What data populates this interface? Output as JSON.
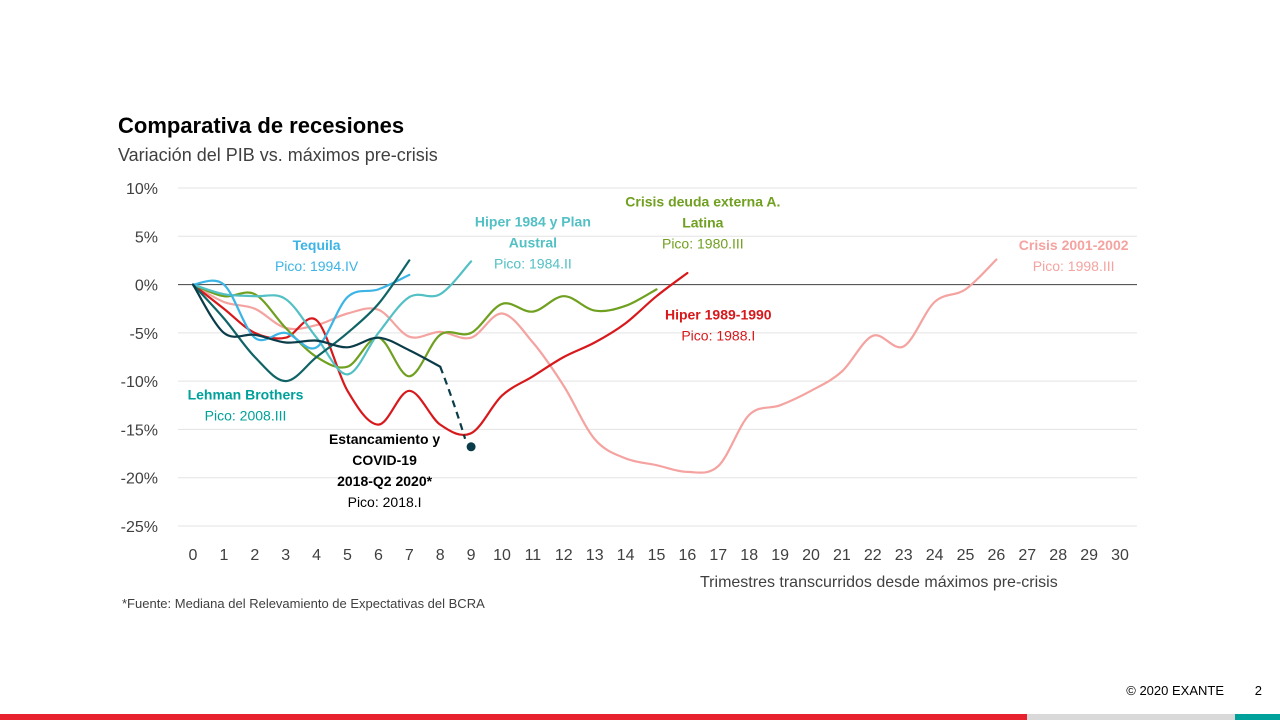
{
  "header": {
    "title": "Comparativa de recesiones",
    "subtitle": "Variación del PIB vs. máximos pre-crisis"
  },
  "footer": {
    "footnote": "*Fuente: Mediana del Relevamiento de Expectativas del BCRA",
    "copyright": "© 2020 EXANTE",
    "page_number": "2"
  },
  "chart_data": {
    "type": "line",
    "title": "Comparativa de recesiones",
    "subtitle": "Variación del PIB vs. máximos pre-crisis",
    "xlabel": "Trimestres transcurridos desde máximos pre-crisis",
    "ylabel": "",
    "xlim": [
      0,
      30
    ],
    "ylim": [
      -25,
      10
    ],
    "x_ticks": [
      0,
      1,
      2,
      3,
      4,
      5,
      6,
      7,
      8,
      9,
      10,
      11,
      12,
      13,
      14,
      15,
      16,
      17,
      18,
      19,
      20,
      21,
      22,
      23,
      24,
      25,
      26,
      27,
      28,
      29,
      30
    ],
    "y_ticks": [
      {
        "value": 10,
        "label": "10%"
      },
      {
        "value": 5,
        "label": "5%"
      },
      {
        "value": 0,
        "label": "0%"
      },
      {
        "value": -5,
        "label": "-5%"
      },
      {
        "value": -10,
        "label": "-10%"
      },
      {
        "value": -15,
        "label": "-15%"
      },
      {
        "value": -20,
        "label": "-20%"
      },
      {
        "value": -25,
        "label": "-25%"
      }
    ],
    "grid": true,
    "series": [
      {
        "name": "Crisis 2001-2002",
        "note": "Pico: 1998.III",
        "color": "#f4a3a0",
        "x": [
          0,
          1,
          2,
          3,
          4,
          5,
          6,
          7,
          8,
          9,
          10,
          11,
          12,
          13,
          14,
          15,
          16,
          17,
          18,
          19,
          20,
          21,
          22,
          23,
          24,
          25,
          26
        ],
        "values": [
          0,
          -1.8,
          -2.5,
          -4.5,
          -4.2,
          -3,
          -2.6,
          -5.4,
          -4.9,
          -5.5,
          -3,
          -6,
          -10.5,
          -16,
          -18,
          -18.7,
          -19.4,
          -18.8,
          -13.5,
          -12.5,
          -11,
          -9,
          -5.3,
          -6.4,
          -1.8,
          -0.5,
          2.6
        ]
      },
      {
        "name": "Hiper 1989-1990",
        "note": "Pico: 1988.I",
        "color": "#d7191c",
        "x": [
          0,
          1,
          2,
          3,
          4,
          5,
          6,
          7,
          8,
          9,
          10,
          11,
          12,
          13,
          14,
          15,
          16
        ],
        "values": [
          0,
          -2.5,
          -5,
          -5.5,
          -3.7,
          -11,
          -14.5,
          -11,
          -14.5,
          -15.4,
          -11.5,
          -9.5,
          -7.5,
          -6,
          -4,
          -1.2,
          1.2
        ]
      },
      {
        "name": "Crisis deuda externa A. Latina",
        "note": "Pico: 1980.III",
        "color": "#70a020",
        "x": [
          0,
          1,
          2,
          3,
          4,
          5,
          6,
          7,
          8,
          9,
          10,
          11,
          12,
          13,
          14,
          15
        ],
        "values": [
          0,
          -1.2,
          -1,
          -4.5,
          -7.5,
          -8.5,
          -5.5,
          -9.5,
          -5.2,
          -5,
          -2,
          -2.8,
          -1.2,
          -2.7,
          -2.2,
          -0.5
        ]
      },
      {
        "name": "Hiper 1984 y Plan Austral",
        "note": "Pico: 1984.II",
        "color": "#52c0c4",
        "x": [
          0,
          1,
          2,
          3,
          4,
          5,
          6,
          7,
          8,
          9
        ],
        "values": [
          0,
          -1,
          -1.2,
          -1.5,
          -5.5,
          -9.3,
          -5,
          -1.3,
          -1,
          2.4
        ]
      },
      {
        "name": "Tequila",
        "note": "Pico: 1994.IV",
        "color": "#3cb4e5",
        "x": [
          0,
          1,
          2,
          3,
          4,
          5,
          6,
          7
        ],
        "values": [
          0,
          0,
          -5.5,
          -5,
          -6.5,
          -1.3,
          -0.5,
          1
        ]
      },
      {
        "name": "Lehman Brothers",
        "note": "Pico: 2008.III",
        "color": "#116466",
        "x": [
          0,
          1,
          2,
          3,
          4,
          5,
          6,
          7
        ],
        "values": [
          0,
          -3.5,
          -7.5,
          -10,
          -7.5,
          -5,
          -2,
          2.5
        ]
      },
      {
        "name": "Estancamiento y COVID-19 2018-Q2 2020*",
        "note": "Pico: 2018.I",
        "color": "#0b3c49",
        "x": [
          0,
          1,
          2,
          3,
          4,
          5,
          6,
          7,
          8
        ],
        "values": [
          0,
          -5,
          -5.2,
          -6,
          -5.8,
          -6.5,
          -5.5,
          -6.8,
          -8.5
        ],
        "projection": {
          "x": [
            8,
            9
          ],
          "values": [
            -8.5,
            -16.8
          ]
        }
      }
    ]
  },
  "annotations": [
    {
      "id": "tequila",
      "lines": [
        "Tequila",
        "Pico: 1994.IV"
      ],
      "color": "#3cb4e5",
      "x": 4,
      "y": 3.6
    },
    {
      "id": "hiper84",
      "lines": [
        "Hiper 1984 y Plan",
        "Austral",
        "Pico: 1984.II"
      ],
      "color": "#52c0c4",
      "x": 11,
      "y": 6
    },
    {
      "id": "deuda",
      "lines": [
        "Crisis deuda externa A.",
        "Latina",
        "Pico: 1980.III"
      ],
      "color": "#70a020",
      "x": 16.5,
      "y": 8.1
    },
    {
      "id": "crisis01",
      "lines": [
        "Crisis 2001-2002",
        "Pico: 1998.III"
      ],
      "color": "#f4a3a0",
      "x": 28.5,
      "y": 3.6
    },
    {
      "id": "hiper89",
      "lines": [
        "Hiper 1989-1990",
        "Pico: 1988.I"
      ],
      "color": "#d7191c",
      "x": 17,
      "y": -3.6
    },
    {
      "id": "lehman",
      "lines": [
        "Lehman Brothers",
        "Pico: 2008.III"
      ],
      "color": "#00a19a",
      "x": 1.7,
      "y": -11.9
    },
    {
      "id": "covid",
      "lines": [
        "Estancamiento y",
        "COVID-19",
        "2018-Q2 2020*",
        "Pico: 2018.I"
      ],
      "color": "#000000",
      "x": 6.2,
      "y": -16.5
    }
  ]
}
